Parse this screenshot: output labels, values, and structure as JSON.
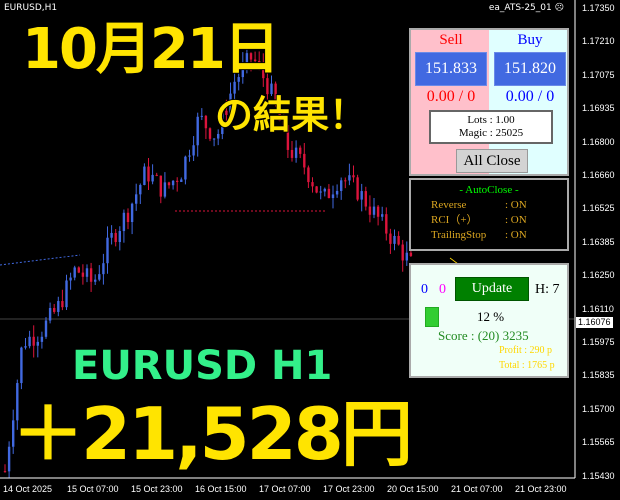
{
  "chart": {
    "symbol": "EURUSD,H1",
    "ea_name": "ea_ATS-25_01",
    "smiley_icon": "sad-face-icon",
    "current_price": "1.16076",
    "price_axis": [
      "1.17350",
      "1.17210",
      "1.17075",
      "1.16935",
      "1.16800",
      "1.16660",
      "1.16525",
      "1.16385",
      "1.16250",
      "1.16110",
      "1.15975",
      "1.15835",
      "1.15700",
      "1.15565",
      "1.15430"
    ],
    "time_axis": [
      "14 Oct 2025",
      "15 Oct 07:00",
      "15 Oct 23:00",
      "16 Oct 15:00",
      "17 Oct 07:00",
      "17 Oct 23:00",
      "20 Oct 15:00",
      "21 Oct 07:00",
      "21 Oct 23:00"
    ],
    "price_path": [
      1.1545,
      1.1598,
      1.1602,
      1.1612,
      1.1628,
      1.1622,
      1.164,
      1.1652,
      1.1668,
      1.166,
      1.1668,
      1.169,
      1.1682,
      1.1705,
      1.1715,
      1.1702,
      1.1678,
      1.167,
      1.1656,
      1.1666,
      1.166,
      1.165,
      1.164,
      1.163
    ],
    "bull_color": "#4169e1",
    "bear_color": "#dc143c"
  },
  "trade_panel": {
    "sell_label": "Sell",
    "buy_label": "Buy",
    "sell_price": "151.833",
    "buy_price": "151.820",
    "sell_pnl": "0.00 / 0",
    "buy_pnl": "0.00 / 0",
    "lots": "Lots   : 1.00",
    "magic": "Magic : 25025",
    "all_close": "All Close"
  },
  "autoclose": {
    "title": "- AutoClose -",
    "rows": [
      {
        "k": "Reverse",
        "v": ": ON"
      },
      {
        "k": "RCI（+）",
        "v": ": ON"
      },
      {
        "k": "TrailingStop",
        "v": ": ON"
      }
    ]
  },
  "update_panel": {
    "count_blue": "0",
    "count_magenta": "0",
    "update": "Update",
    "h": "H: 7",
    "percent": "12 %",
    "score": "Score : (20) 3235",
    "profit": "Profit : 290 p",
    "total": "Total : 1765 p"
  },
  "overlay": {
    "date": "10月21日",
    "result": "の結果！",
    "pair": "EURUSD H1",
    "amount": "＋21,528円"
  }
}
